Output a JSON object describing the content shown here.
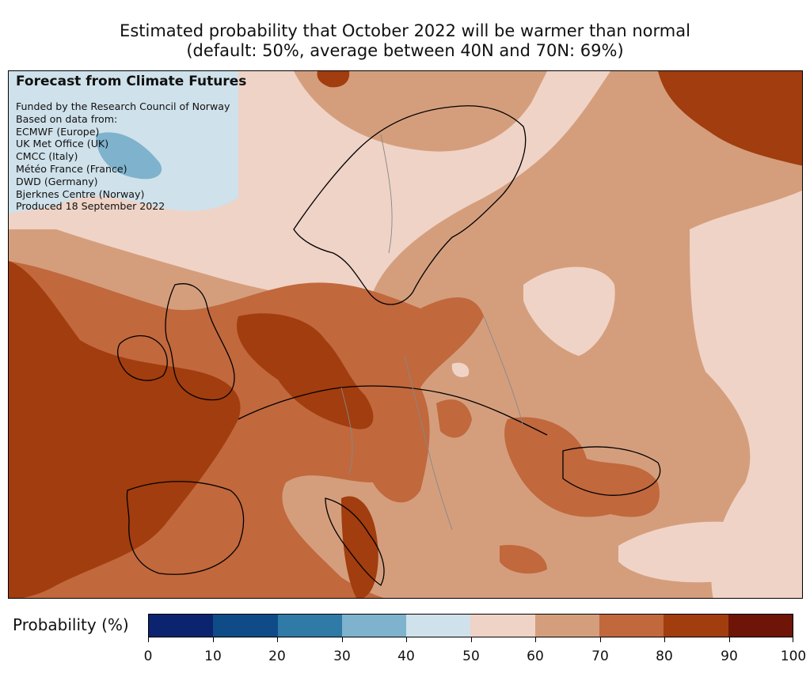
{
  "title": {
    "line1": "Estimated probability that October 2022 will be warmer than normal",
    "line2": "(default: 50%, average between 40N and 70N: 69%)"
  },
  "credits": {
    "heading": "Forecast from Climate Futures",
    "lines": [
      "Funded by the Research Council of Norway",
      "Based on data from:",
      "ECMWF (Europe)",
      "UK Met Office (UK)",
      "CMCC (Italy)",
      "Météo France (France)",
      "DWD (Germany)",
      "Bjerknes Centre (Norway)",
      "Produced 18 September 2022"
    ]
  },
  "colorbar": {
    "label": "Probability (%)",
    "ticks": [
      "0",
      "10",
      "20",
      "30",
      "40",
      "50",
      "60",
      "70",
      "80",
      "90",
      "100"
    ],
    "colors": [
      "#0c2470",
      "#0f4c87",
      "#2f7aa6",
      "#7eb2cd",
      "#cfe1ea",
      "#efd3c6",
      "#d49e7d",
      "#c1683d",
      "#a13d0e",
      "#6e1508"
    ]
  },
  "map": {
    "land_outline_color": "#000000",
    "border_color": "#888888"
  }
}
